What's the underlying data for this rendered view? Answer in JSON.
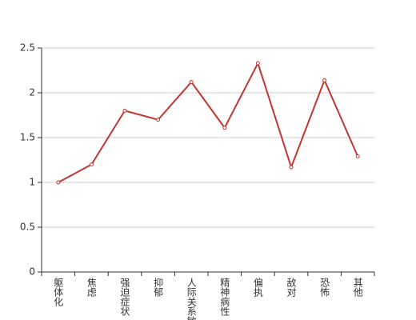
{
  "chart_data": {
    "type": "line",
    "categories": [
      "躯体化",
      "焦虑",
      "强迫症状",
      "抑郁",
      "人际关系敏感",
      "精神病性",
      "偏执",
      "敌对",
      "恐怖",
      "其他"
    ],
    "values": [
      1.0,
      1.2,
      1.8,
      1.7,
      2.12,
      1.61,
      2.33,
      1.17,
      2.14,
      1.29
    ],
    "color": "#c23531",
    "ylim": [
      0,
      2.5
    ],
    "yticks": [
      0,
      0.5,
      1,
      1.5,
      2,
      2.5
    ],
    "grid": true
  }
}
